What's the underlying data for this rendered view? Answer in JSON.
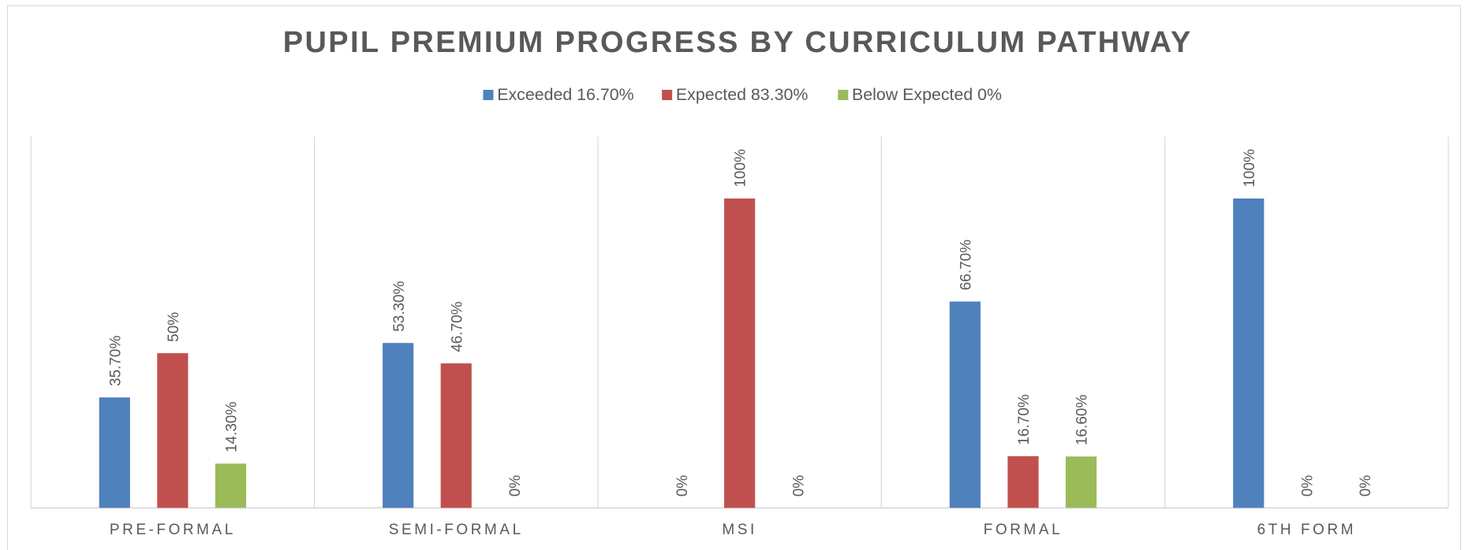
{
  "chart_data": {
    "type": "bar",
    "title": "PUPIL PREMIUM PROGRESS BY CURRICULUM PATHWAY",
    "categories": [
      "PRE-FORMAL",
      "SEMI-FORMAL",
      "MSI",
      "FORMAL",
      "6TH FORM"
    ],
    "series": [
      {
        "name": "Exceeded 16.70%",
        "color": "#4f81bd",
        "values": [
          35.7,
          53.3,
          0,
          66.7,
          100
        ],
        "value_labels": [
          "35.70%",
          "53.30%",
          "0%",
          "66.70%",
          "100%"
        ]
      },
      {
        "name": "Expected 83.30%",
        "color": "#c0504d",
        "values": [
          50,
          46.7,
          100,
          16.7,
          0
        ],
        "value_labels": [
          "50%",
          "46.70%",
          "100%",
          "16.70%",
          "0%"
        ]
      },
      {
        "name": "Below Expected 0%",
        "color": "#9bbb59",
        "values": [
          14.3,
          0,
          0,
          16.6,
          0
        ],
        "value_labels": [
          "14.30%",
          "0%",
          "0%",
          "16.60%",
          "0%"
        ]
      }
    ],
    "ylim": [
      0,
      120
    ],
    "legend": "top"
  }
}
